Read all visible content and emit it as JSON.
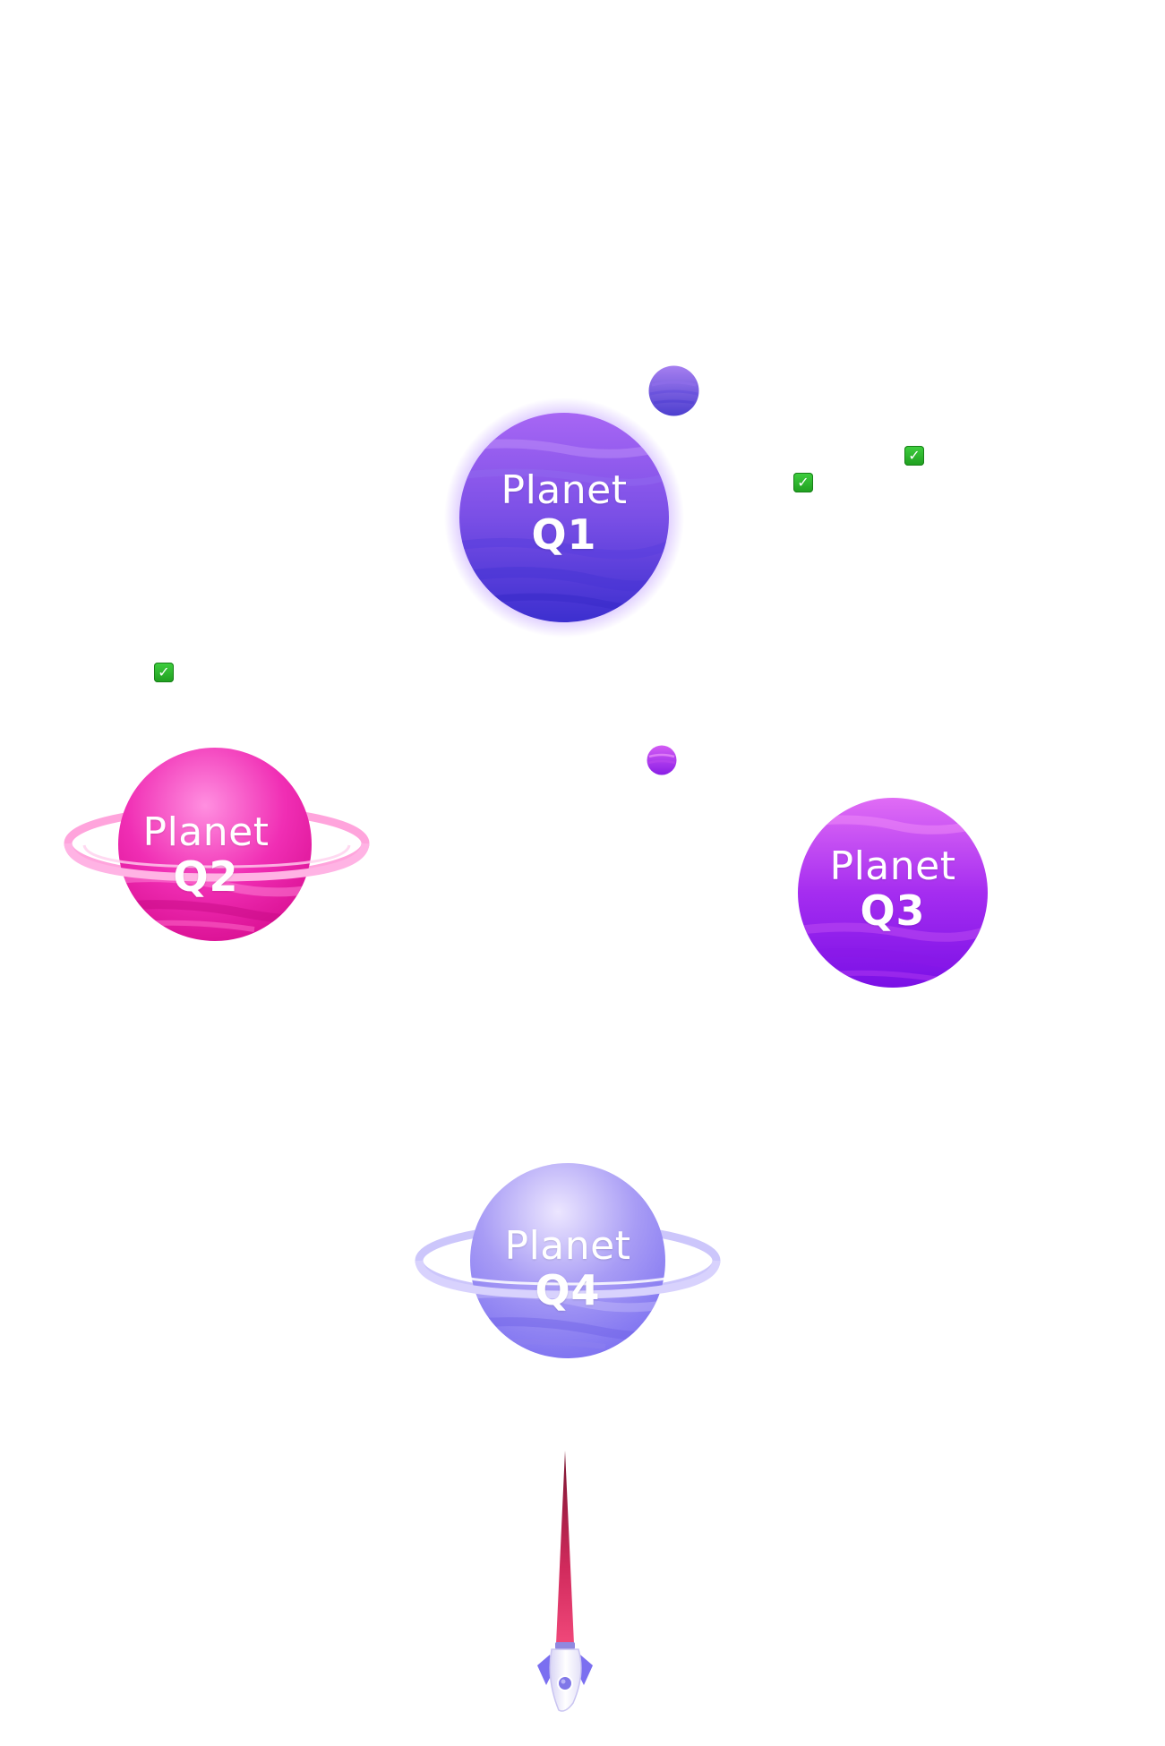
{
  "scene": {
    "background": "#ffffff"
  },
  "planets": [
    {
      "id": "q1",
      "word": "Planet",
      "code": "Q1",
      "ringed": false,
      "colors": {
        "top": "#a766f4",
        "mid": "#7a4fe6",
        "bottom": "#3c2fcf",
        "band": "#5a3fde"
      }
    },
    {
      "id": "q2",
      "word": "Planet",
      "code": "Q2",
      "ringed": true,
      "colors": {
        "top": "#ff6ad2",
        "mid": "#f02eb4",
        "bottom": "#e2139a",
        "band": "#ff86d8",
        "ring": "#ff8fd4"
      }
    },
    {
      "id": "q3",
      "word": "Planet",
      "code": "Q3",
      "ringed": false,
      "colors": {
        "top": "#d35cf4",
        "mid": "#a52df0",
        "bottom": "#7a10e6",
        "band": "#c04ef1"
      }
    },
    {
      "id": "q4",
      "word": "Planet",
      "code": "Q4",
      "ringed": true,
      "colors": {
        "top": "#e0d6ff",
        "mid": "#a89cf5",
        "bottom": "#7b6ff0",
        "band": "#c5bcfa",
        "ring": "#c7c0fb"
      }
    }
  ],
  "moons": [
    {
      "id": "moon-large",
      "colors": {
        "top": "#a67ff0",
        "bottom": "#4d3fcf"
      }
    },
    {
      "id": "moon-small",
      "colors": {
        "top": "#d35cf4",
        "bottom": "#8a1ee6"
      }
    }
  ],
  "checkmarks": [
    {
      "id": "check-1",
      "icon": "checkmark-icon",
      "glyph": "✓"
    },
    {
      "id": "check-2",
      "icon": "checkmark-icon",
      "glyph": "✓"
    },
    {
      "id": "check-3",
      "icon": "checkmark-icon",
      "glyph": "✓"
    }
  ],
  "rocket": {
    "icon": "rocket-icon",
    "colors": {
      "trail": "#e83a6a",
      "trail_tip": "#8a1630",
      "body": "#ffffff",
      "fins": "#7b6ff0"
    }
  }
}
